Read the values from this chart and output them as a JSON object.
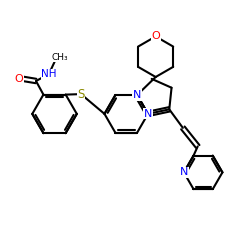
{
  "bg_color": "#ffffff",
  "atom_colors": {
    "O": "#ff0000",
    "N": "#0000ff",
    "S": "#8b8b00",
    "C": "#000000"
  },
  "bond_lw": 1.5,
  "figsize": [
    2.5,
    2.5
  ],
  "dpi": 100,
  "xlim": [
    0,
    10
  ],
  "ylim": [
    0,
    10
  ]
}
